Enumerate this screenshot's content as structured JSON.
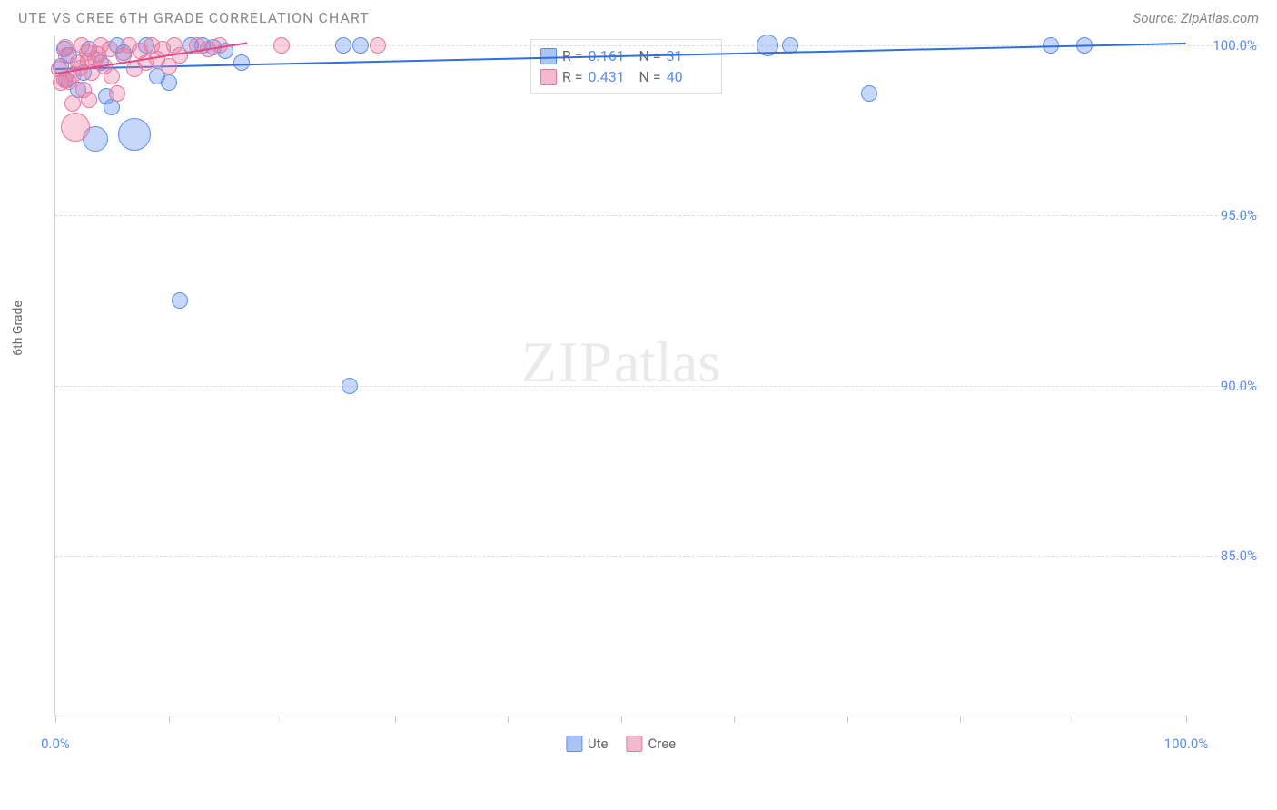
{
  "header": {
    "title": "UTE VS CREE 6TH GRADE CORRELATION CHART",
    "source_prefix": "Source: ",
    "source": "ZipAtlas.com"
  },
  "watermark": {
    "zip": "ZIP",
    "atlas": "atlas"
  },
  "chart": {
    "type": "scatter",
    "y_axis_label": "6th Grade",
    "xlim": [
      0,
      100
    ],
    "ylim": [
      80.3,
      100.3
    ],
    "x_ticks": [
      0,
      10,
      20,
      30,
      40,
      50,
      60,
      70,
      80,
      90,
      100
    ],
    "x_tick_labels": {
      "0": "0.0%",
      "100": "100.0%"
    },
    "y_ticks": [
      85,
      90,
      95,
      100
    ],
    "y_tick_labels": {
      "85": "85.0%",
      "90": "90.0%",
      "95": "95.0%",
      "100": "100.0%"
    },
    "grid_color": "#dddddd",
    "axis_color": "#cccccc",
    "background_color": "#ffffff",
    "tick_label_color": "#5b8def",
    "point_stroke_width": 1.5,
    "default_radius": 9,
    "series": [
      {
        "name": "Ute",
        "fill": "rgba(91,141,239,0.35)",
        "stroke": "#5b8def",
        "swatch_fill": "#a9c4f5",
        "swatch_border": "#5b8def",
        "R": "0.161",
        "N": "31",
        "regression": {
          "x1": 0,
          "y1": 99.35,
          "x2": 100,
          "y2": 100.1,
          "color": "#2f6fe0",
          "width": 2
        },
        "points": [
          {
            "x": 0.5,
            "y": 99.4
          },
          {
            "x": 1.2,
            "y": 99.7
          },
          {
            "x": 2.5,
            "y": 99.2
          },
          {
            "x": 3.0,
            "y": 99.9
          },
          {
            "x": 4.5,
            "y": 98.5
          },
          {
            "x": 5.5,
            "y": 100.0
          },
          {
            "x": 6.0,
            "y": 99.8
          },
          {
            "x": 7.0,
            "y": 97.4,
            "r": 18
          },
          {
            "x": 8.0,
            "y": 100.0
          },
          {
            "x": 9.0,
            "y": 99.1
          },
          {
            "x": 10.0,
            "y": 98.9
          },
          {
            "x": 11.0,
            "y": 92.5
          },
          {
            "x": 12.0,
            "y": 100.0
          },
          {
            "x": 13.0,
            "y": 100.0
          },
          {
            "x": 14.0,
            "y": 99.95
          },
          {
            "x": 15.0,
            "y": 99.85
          },
          {
            "x": 16.5,
            "y": 99.5
          },
          {
            "x": 25.5,
            "y": 100.0
          },
          {
            "x": 26.0,
            "y": 90.0
          },
          {
            "x": 27.0,
            "y": 100.0
          },
          {
            "x": 63.0,
            "y": 100.0,
            "r": 12
          },
          {
            "x": 65.0,
            "y": 100.0
          },
          {
            "x": 72.0,
            "y": 98.6
          },
          {
            "x": 88.0,
            "y": 100.0
          },
          {
            "x": 91.0,
            "y": 100.0
          },
          {
            "x": 5.0,
            "y": 98.2
          },
          {
            "x": 3.5,
            "y": 97.25,
            "r": 14
          },
          {
            "x": 2.0,
            "y": 98.7
          },
          {
            "x": 1.0,
            "y": 99.0
          },
          {
            "x": 0.8,
            "y": 99.9
          },
          {
            "x": 4.0,
            "y": 99.5
          }
        ]
      },
      {
        "name": "Cree",
        "fill": "rgba(236,120,160,0.35)",
        "stroke": "#e578a0",
        "swatch_fill": "#f5b9ce",
        "swatch_border": "#e578a0",
        "R": "0.431",
        "N": "40",
        "regression": {
          "x1": 0,
          "y1": 99.2,
          "x2": 17,
          "y2": 100.1,
          "color": "#e04a82",
          "width": 2
        },
        "points": [
          {
            "x": 0.3,
            "y": 99.3
          },
          {
            "x": 0.8,
            "y": 99.0
          },
          {
            "x": 1.0,
            "y": 99.7
          },
          {
            "x": 1.5,
            "y": 98.3
          },
          {
            "x": 2.0,
            "y": 99.5
          },
          {
            "x": 2.3,
            "y": 100.0
          },
          {
            "x": 2.8,
            "y": 99.8
          },
          {
            "x": 3.2,
            "y": 99.2
          },
          {
            "x": 3.5,
            "y": 99.6
          },
          {
            "x": 4.0,
            "y": 100.0
          },
          {
            "x": 4.3,
            "y": 99.4
          },
          {
            "x": 4.8,
            "y": 99.9
          },
          {
            "x": 5.0,
            "y": 99.1
          },
          {
            "x": 5.5,
            "y": 98.6
          },
          {
            "x": 6.0,
            "y": 99.7
          },
          {
            "x": 6.5,
            "y": 100.0
          },
          {
            "x": 7.0,
            "y": 99.3
          },
          {
            "x": 7.5,
            "y": 99.85
          },
          {
            "x": 8.0,
            "y": 99.5
          },
          {
            "x": 8.5,
            "y": 100.0
          },
          {
            "x": 9.0,
            "y": 99.6
          },
          {
            "x": 9.5,
            "y": 99.9
          },
          {
            "x": 10.0,
            "y": 99.4
          },
          {
            "x": 10.5,
            "y": 100.0
          },
          {
            "x": 11.0,
            "y": 99.7
          },
          {
            "x": 12.5,
            "y": 100.0
          },
          {
            "x": 13.5,
            "y": 99.9
          },
          {
            "x": 14.5,
            "y": 100.0
          },
          {
            "x": 20.0,
            "y": 100.0
          },
          {
            "x": 28.5,
            "y": 100.0
          },
          {
            "x": 1.8,
            "y": 97.6,
            "r": 16
          },
          {
            "x": 0.5,
            "y": 98.9
          },
          {
            "x": 1.2,
            "y": 98.95
          },
          {
            "x": 2.5,
            "y": 98.7
          },
          {
            "x": 3.0,
            "y": 98.4
          },
          {
            "x": 0.9,
            "y": 99.95
          },
          {
            "x": 1.6,
            "y": 99.15
          },
          {
            "x": 2.2,
            "y": 99.35
          },
          {
            "x": 2.9,
            "y": 99.55
          },
          {
            "x": 3.8,
            "y": 99.75
          }
        ]
      }
    ],
    "legend_labels": {
      "R": "R =",
      "N": "N ="
    },
    "series_legend_labels": [
      "Ute",
      "Cree"
    ]
  }
}
